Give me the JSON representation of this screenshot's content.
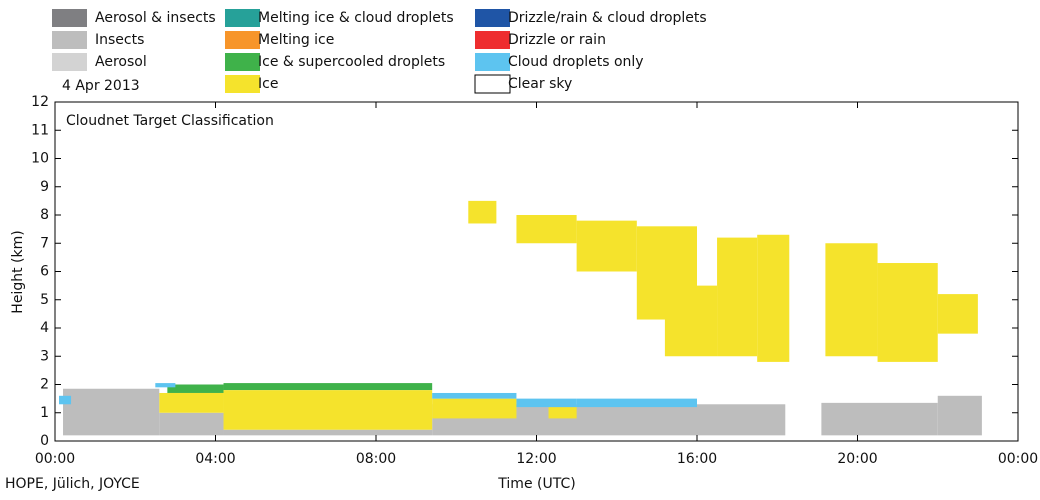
{
  "chart_data": {
    "type": "classification",
    "title": "Cloudnet Target Classification",
    "date": "4 Apr 2013",
    "source": "HOPE, Jülich, JOYCE",
    "x_label": "Time (UTC)",
    "y_label": "Height (km)",
    "xlim": [
      0,
      24
    ],
    "ylim": [
      0,
      12
    ],
    "xticks": [
      {
        "value": 0,
        "label": "00:00"
      },
      {
        "value": 4,
        "label": "04:00"
      },
      {
        "value": 8,
        "label": "08:00"
      },
      {
        "value": 12,
        "label": "12:00"
      },
      {
        "value": 16,
        "label": "16:00"
      },
      {
        "value": 20,
        "label": "20:00"
      },
      {
        "value": 24,
        "label": "00:00"
      }
    ],
    "yticks": [
      0,
      1,
      2,
      3,
      4,
      5,
      6,
      7,
      8,
      9,
      10,
      11,
      12
    ],
    "series": [
      {
        "name": "Aerosol & insects",
        "color": "#7f7f82",
        "boxes": []
      },
      {
        "name": "Insects",
        "color": "#bdbdbd",
        "boxes": [
          [
            0.2,
            2.6,
            0.2,
            1.85
          ],
          [
            2.6,
            4.2,
            0.2,
            1.0
          ],
          [
            4.2,
            9.4,
            0.2,
            0.4
          ],
          [
            9.4,
            18.2,
            0.2,
            1.3
          ],
          [
            19.1,
            22,
            0.2,
            1.35
          ],
          [
            22,
            23.1,
            0.2,
            1.6
          ]
        ]
      },
      {
        "name": "Aerosol",
        "color": "#d3d3d3",
        "boxes": []
      },
      {
        "name": "Melting ice & cloud droplets",
        "color": "#26a199",
        "boxes": []
      },
      {
        "name": "Melting ice",
        "color": "#f7952a",
        "boxes": []
      },
      {
        "name": "Ice & supercooled droplets",
        "color": "#3fb24a",
        "boxes": [
          [
            2.8,
            4.2,
            1.7,
            2.0
          ],
          [
            4.2,
            9.4,
            1.8,
            2.05
          ],
          [
            16,
            16.2,
            4.8,
            5.3
          ]
        ]
      },
      {
        "name": "Ice",
        "color": "#f5e32c",
        "boxes": [
          [
            2.6,
            4.2,
            1.0,
            1.7
          ],
          [
            4.2,
            9.4,
            0.4,
            1.8
          ],
          [
            9.4,
            11.5,
            0.8,
            1.5
          ],
          [
            12.3,
            13,
            0.8,
            1.2
          ],
          [
            10.3,
            11,
            7.7,
            8.5
          ],
          [
            11.5,
            13,
            7.0,
            8.0
          ],
          [
            13,
            14.5,
            6.0,
            7.8
          ],
          [
            14.5,
            16,
            4.3,
            7.6
          ],
          [
            15.2,
            16.5,
            3.0,
            5.5
          ],
          [
            16.5,
            17.5,
            3.0,
            7.2
          ],
          [
            17.5,
            18.3,
            2.8,
            7.3
          ],
          [
            19.2,
            20.5,
            3.0,
            7.0
          ],
          [
            20.5,
            22,
            2.8,
            6.3
          ],
          [
            22,
            23,
            3.8,
            5.2
          ]
        ]
      },
      {
        "name": "Drizzle/rain & cloud droplets",
        "color": "#1f55a6",
        "boxes": []
      },
      {
        "name": "Drizzle or rain",
        "color": "#ee2d2f",
        "boxes": []
      },
      {
        "name": "Cloud droplets only",
        "color": "#5dc4f0",
        "boxes": [
          [
            0.1,
            0.4,
            1.3,
            1.6
          ],
          [
            2.5,
            3,
            1.9,
            2.05
          ],
          [
            9.4,
            11.5,
            1.5,
            1.7
          ],
          [
            11.5,
            13,
            1.2,
            1.5
          ],
          [
            13,
            16,
            1.2,
            1.5
          ]
        ]
      },
      {
        "name": "Clear sky",
        "color": "#ffffff",
        "boxes": []
      }
    ]
  }
}
